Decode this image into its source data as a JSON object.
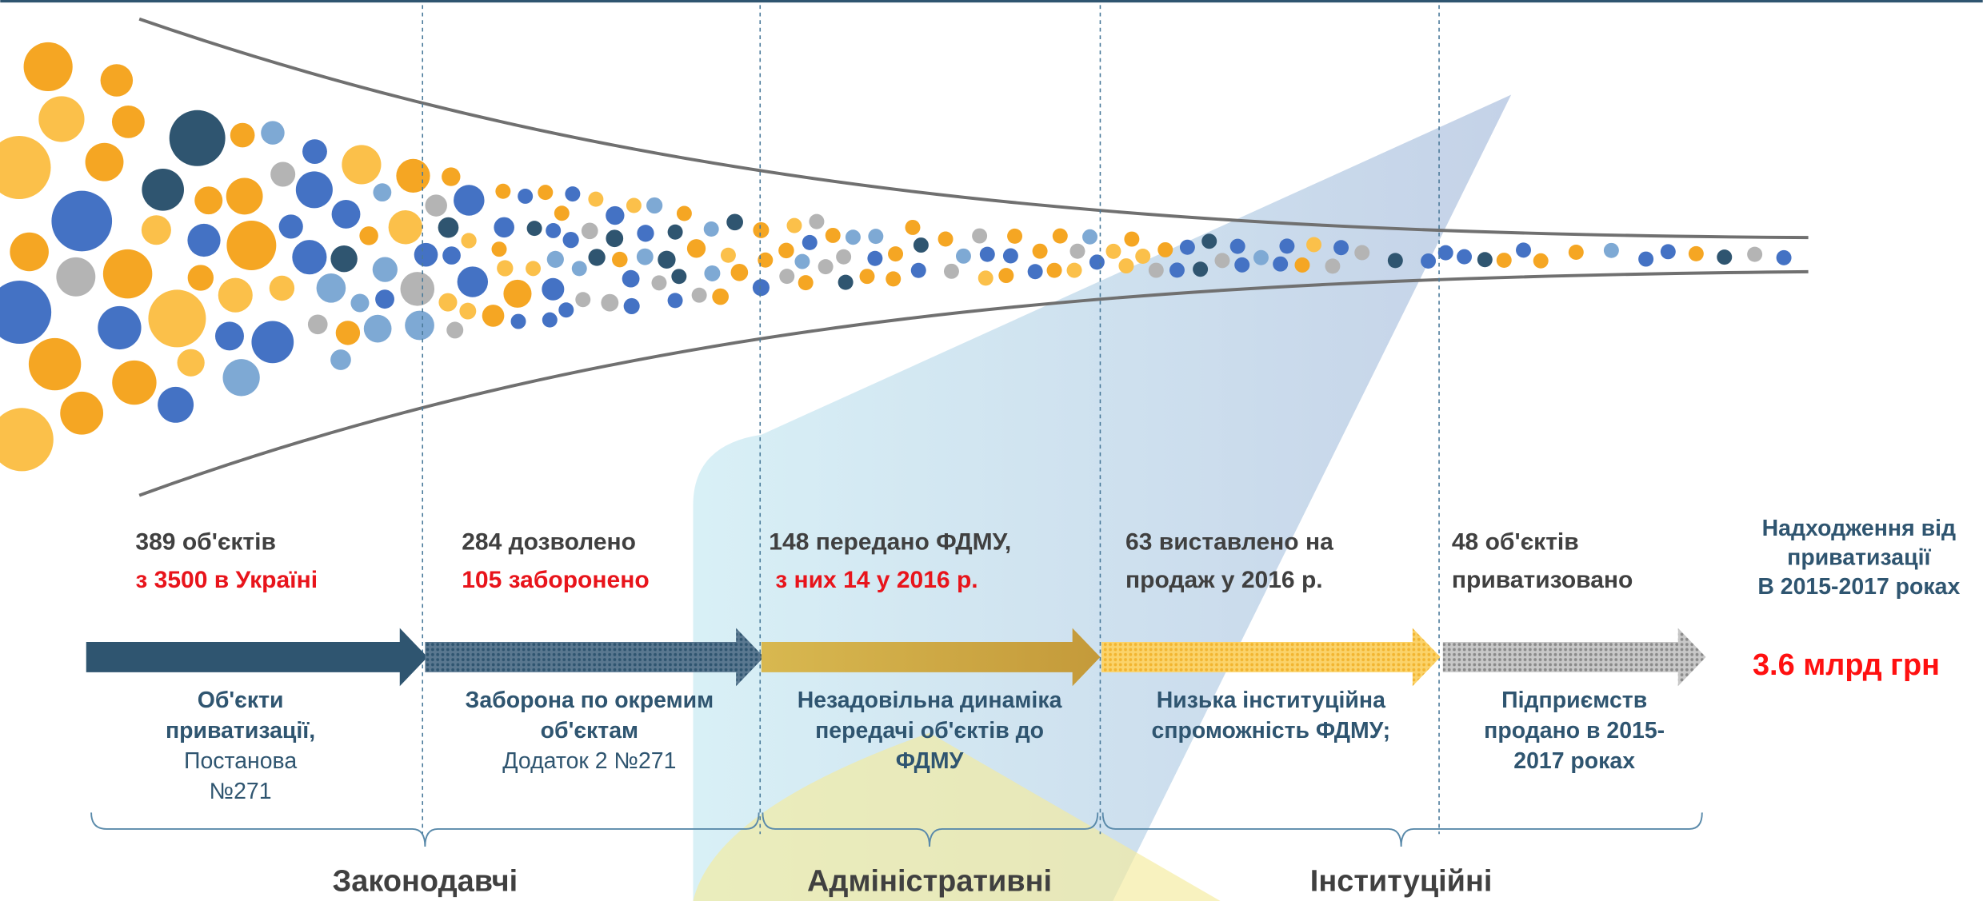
{
  "stages": [
    {
      "lines": [
        "389 об'єктів"
      ],
      "highlight": [
        "з 3500 в Україні"
      ],
      "caption": [
        "Об'єкти",
        "приватизації,"
      ],
      "source": [
        "Постанова",
        "№271"
      ]
    },
    {
      "lines": [
        "284 дозволено"
      ],
      "highlight": [
        "105 заборонено"
      ],
      "caption": [
        "Заборона по окремим",
        "об'єктам"
      ],
      "source": [
        "Додаток 2 №271"
      ]
    },
    {
      "lines": [
        "148 передано ФДМУ,"
      ],
      "highlight": [
        "з них 14 у 2016 р."
      ],
      "caption": [
        "Незадовільна динаміка",
        "передачі об'єктів до",
        "ФДМУ"
      ],
      "source": []
    },
    {
      "lines": [
        "63 виставлено на",
        "продаж у 2016 р."
      ],
      "highlight": [],
      "caption": [
        "Низька інституційна",
        "спроможність ФДМУ;"
      ],
      "source": []
    },
    {
      "lines": [
        "48 об'єктів",
        "приватизовано"
      ],
      "highlight": [],
      "caption": [
        "Підприємств",
        "продано в 2015-",
        "2017 роках"
      ],
      "source": []
    }
  ],
  "result": {
    "title": [
      "Надходження від",
      "приватизації",
      "В 2015-2017 роках"
    ],
    "amount": "3.6 млрд грн"
  },
  "groups": [
    "Законодавчі",
    "Адміністративні",
    "Інституційні"
  ]
}
